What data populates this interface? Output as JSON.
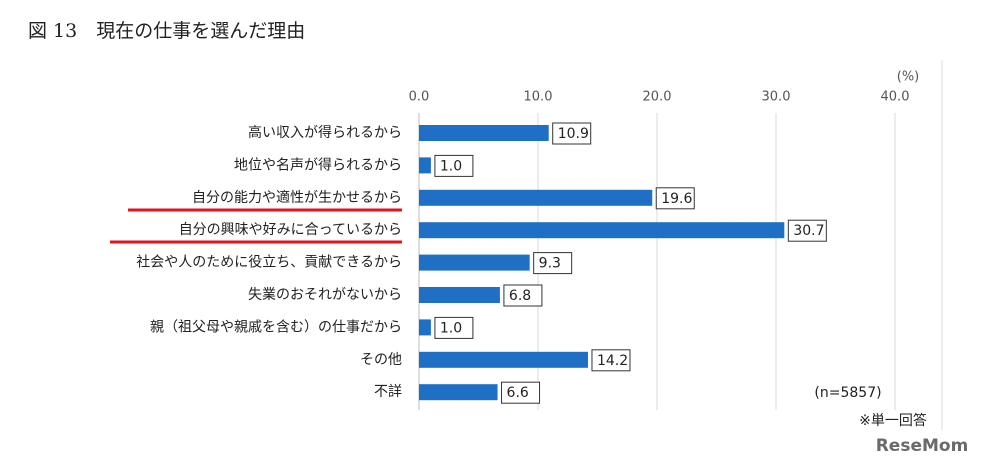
{
  "chart_data": {
    "type": "barh",
    "title": "図 13　現在の仕事を選んだ理由",
    "unit_label": "(%)",
    "categories": [
      "高い収入が得られるから",
      "地位や名声が得られるから",
      "自分の能力や適性が生かせるから",
      "自分の興味や好みに合っているから",
      "社会や人のために役立ち、貢献できるから",
      "失業のおそれがないから",
      "親（祖父母や親戚を含む）の仕事だから",
      "その他",
      "不詳"
    ],
    "values": [
      10.9,
      1.0,
      19.6,
      30.7,
      9.3,
      6.8,
      1.0,
      14.2,
      6.6
    ],
    "value_labels": [
      "10.9",
      "1.0",
      "19.6",
      "30.7",
      "9.3",
      "6.8",
      "1.0",
      "14.2",
      "6.6"
    ],
    "color": "#1f6fc5",
    "xlim": [
      0,
      40
    ],
    "xticks": [
      {
        "value": 0,
        "label": "0.0"
      },
      {
        "value": 10,
        "label": "10.0"
      },
      {
        "value": 20,
        "label": "20.0"
      },
      {
        "value": 30,
        "label": "30.0"
      },
      {
        "value": 40,
        "label": "40.0"
      }
    ],
    "grid": true,
    "note_n": "(n=5857)",
    "note_answer": "※単一回答",
    "watermark": "ReseMom"
  }
}
